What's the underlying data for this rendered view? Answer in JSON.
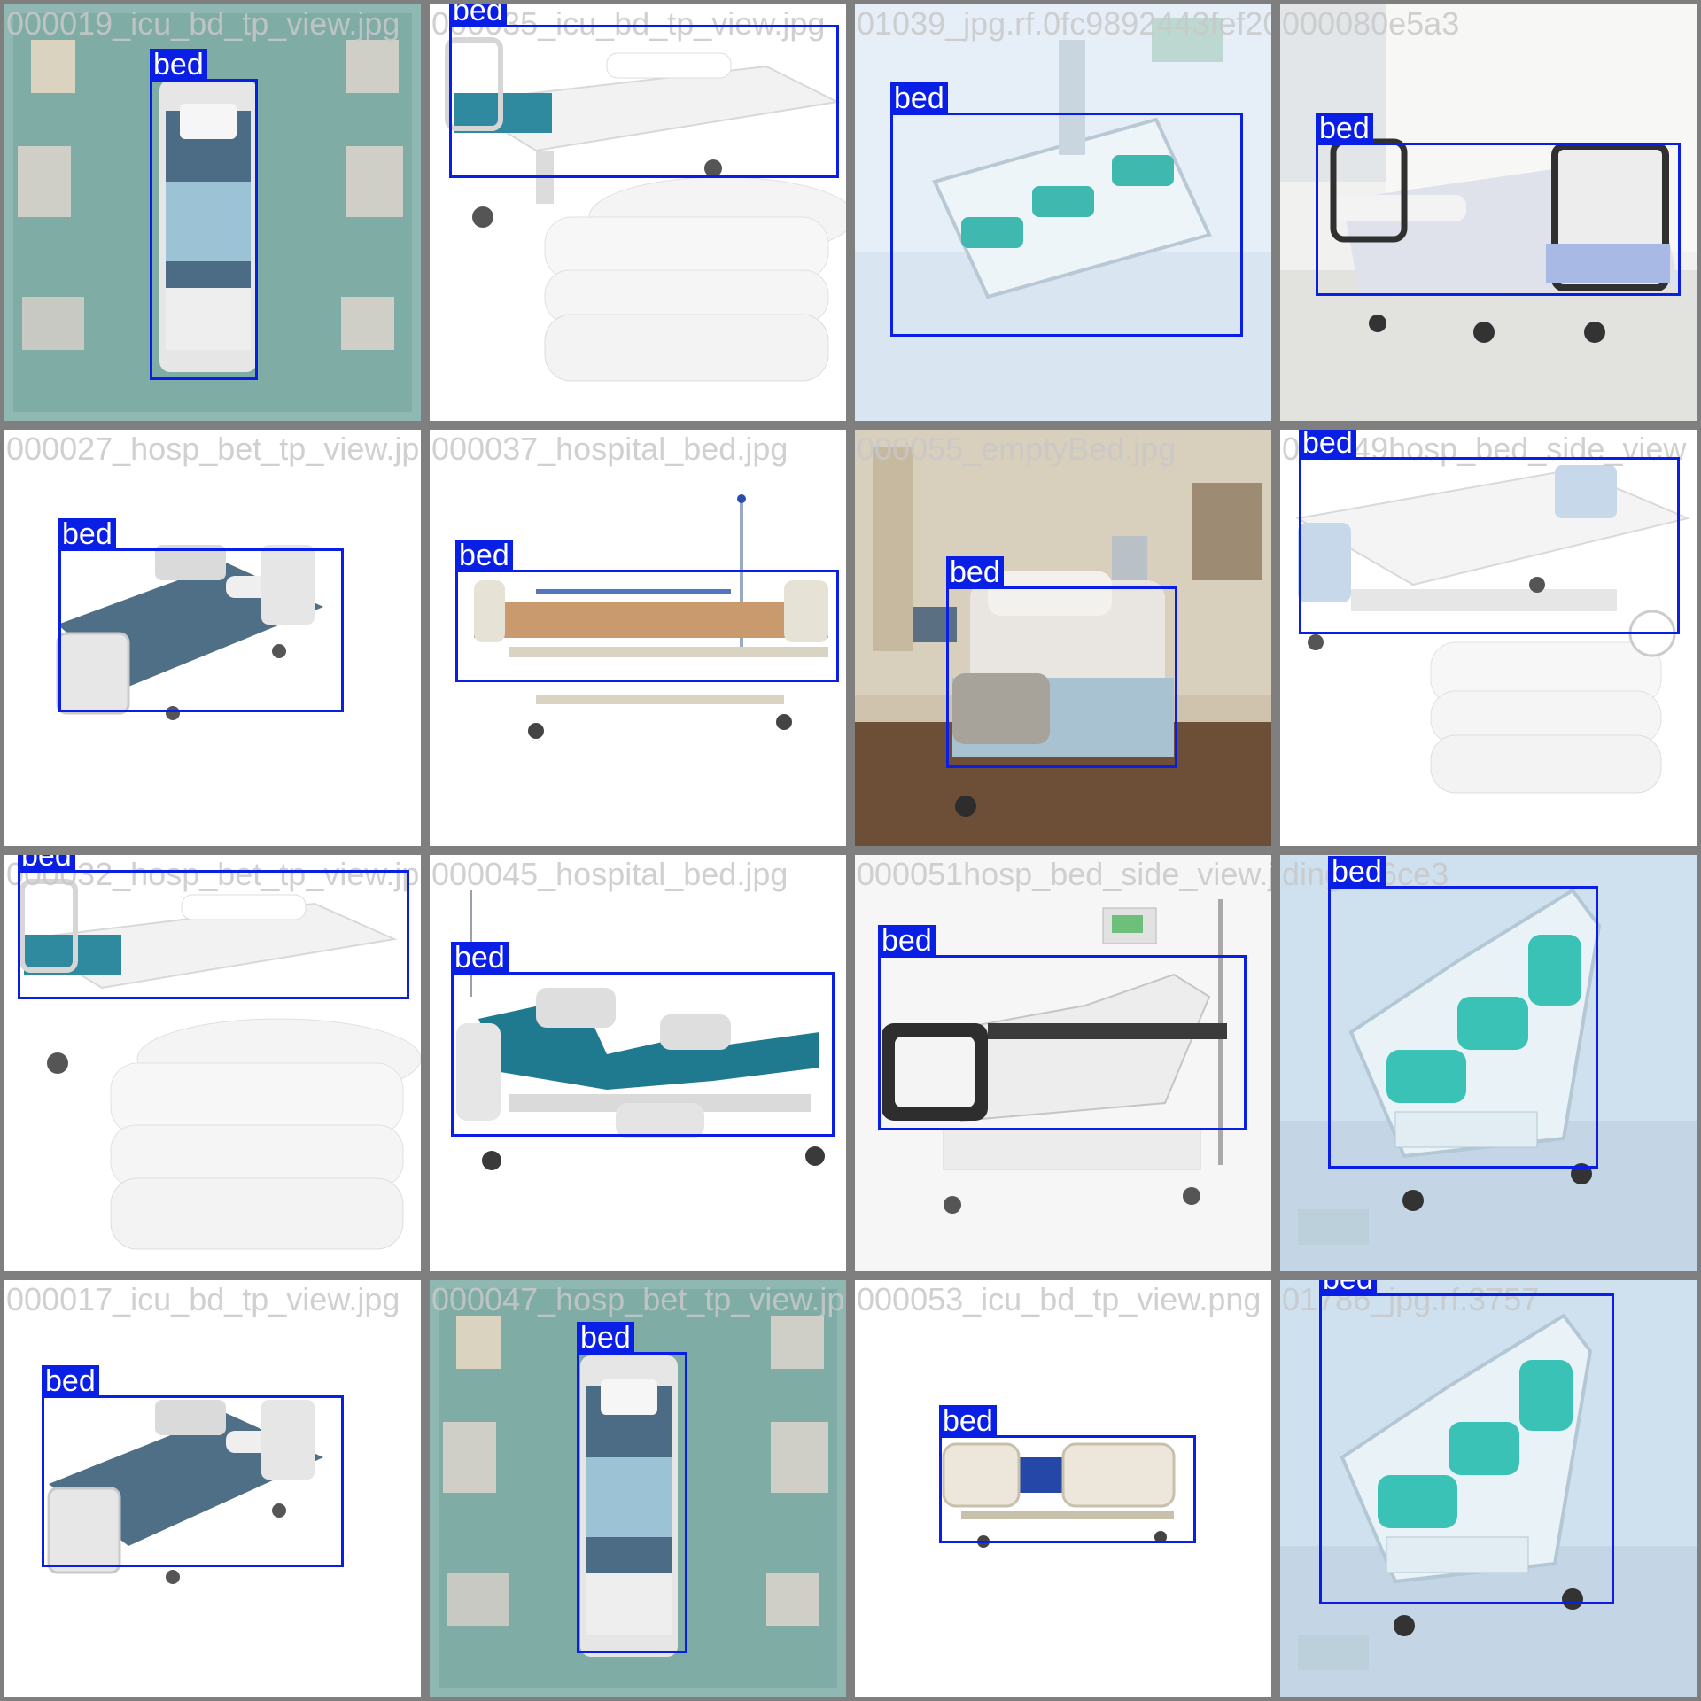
{
  "grid": {
    "tiles": [
      {
        "filename": "000019_icu_bd_tp_view.jpg",
        "label": "bed",
        "scene": "topdown"
      },
      {
        "filename": "000035_icu_bd_tp_view.jpg",
        "label": "bed",
        "scene": "bed-towels"
      },
      {
        "filename": "01039_jpg.rf.0fc9892443fef20",
        "label": "bed",
        "scene": "blue-bed"
      },
      {
        "filename": "000080e5a3",
        "label": "bed",
        "scene": "room-bed"
      },
      {
        "filename": "000027_hosp_bet_tp_view.jpg",
        "label": "bed",
        "scene": "grey-bed"
      },
      {
        "filename": "000037_hospital_bed.jpg",
        "label": "bed",
        "scene": "tan-bed"
      },
      {
        "filename": "000055_emptyBed.jpg",
        "label": "bed",
        "scene": "photo-room"
      },
      {
        "filename": "000049hosp_bed_side_view",
        "label": "bed",
        "scene": "bed-sheets"
      },
      {
        "filename": "000032_hosp_bet_tp_view.jpg",
        "label": "bed",
        "scene": "bed-towels"
      },
      {
        "filename": "000045_hospital_bed.jpg",
        "label": "bed",
        "scene": "teal-bed"
      },
      {
        "filename": "000051hosp_bed_side_view.jpg",
        "label": "bed",
        "scene": "dark-bed"
      },
      {
        "filename": "ding.rf.6ce3",
        "label": "bed",
        "scene": "blue-bed"
      },
      {
        "filename": "000017_icu_bd_tp_view.jpg",
        "label": "bed",
        "scene": "grey-bed"
      },
      {
        "filename": "000047_hosp_bet_tp_view.jpg",
        "label": "bed",
        "scene": "topdown"
      },
      {
        "filename": "000053_icu_bd_tp_view.png",
        "label": "bed",
        "scene": "small-bed"
      },
      {
        "filename": "01786_jpg.rf.3757",
        "label": "bed",
        "scene": "blue-bed"
      }
    ]
  }
}
